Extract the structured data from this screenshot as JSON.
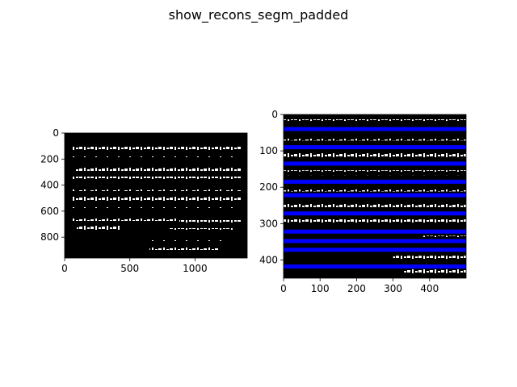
{
  "figure": {
    "suptitle": "show_recons_segm_padded"
  },
  "chart_data": [
    {
      "type": "image",
      "description_role": "segmentation image",
      "xlim": [
        0,
        1400
      ],
      "ylim": [
        960,
        0
      ],
      "xticks": [
        0,
        500,
        1000
      ],
      "yticks": [
        0,
        200,
        400,
        600,
        800
      ],
      "grid": false,
      "background_color": "#000000",
      "foreground_color": "#ffffff"
    },
    {
      "type": "image",
      "description_role": "reconstructed padded segmentation",
      "xlim": [
        0,
        500
      ],
      "ylim": [
        450,
        0
      ],
      "xticks": [
        0,
        100,
        200,
        300,
        400
      ],
      "yticks": [
        0,
        100,
        200,
        300,
        400
      ],
      "grid": false,
      "background_color": "#000000",
      "foreground_color": "#ffffff",
      "band_color": "#0000ff",
      "bands_y": [
        40,
        90,
        135,
        185,
        222,
        272,
        322,
        348,
        372,
        418
      ]
    }
  ]
}
